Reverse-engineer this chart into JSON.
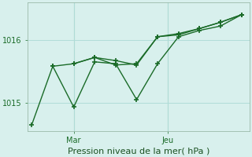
{
  "xlabel": "Pression niveau de la mer( hPa )",
  "background_color": "#d8f0ed",
  "grid_color": "#b0ddd8",
  "line_color": "#1a6b28",
  "tick_label_color": "#1a6b28",
  "xlabel_color": "#1a5020",
  "ylim": [
    1014.55,
    1016.6
  ],
  "yticks": [
    1015.0,
    1016.0
  ],
  "ytick_labels": [
    "1015",
    "1016"
  ],
  "series1_x": [
    0,
    1,
    2,
    3,
    4,
    5,
    6,
    7,
    8,
    9,
    10
  ],
  "series1_y": [
    1014.65,
    1015.58,
    1015.62,
    1015.72,
    1015.67,
    1015.6,
    1016.05,
    1016.1,
    1016.18,
    1016.28,
    1016.4
  ],
  "series2_x": [
    1,
    2,
    3,
    4,
    5,
    6,
    7,
    8,
    9,
    10
  ],
  "series2_y": [
    1015.58,
    1014.93,
    1015.65,
    1015.62,
    1015.05,
    1015.62,
    1016.05,
    1016.15,
    1016.22,
    1016.4
  ],
  "series3_x": [
    2,
    3,
    4,
    5,
    6,
    7,
    8,
    9,
    10
  ],
  "series3_y": [
    1015.62,
    1015.72,
    1015.6,
    1015.62,
    1016.05,
    1016.08,
    1016.18,
    1016.28,
    1016.4
  ],
  "xtick_positions": [
    2.0,
    6.5
  ],
  "xtick_labels": [
    "Mar",
    "Jeu"
  ],
  "vline_positions": [
    2.0,
    6.5
  ],
  "xlim": [
    -0.2,
    10.4
  ],
  "figsize": [
    3.2,
    2.0
  ],
  "dpi": 100
}
